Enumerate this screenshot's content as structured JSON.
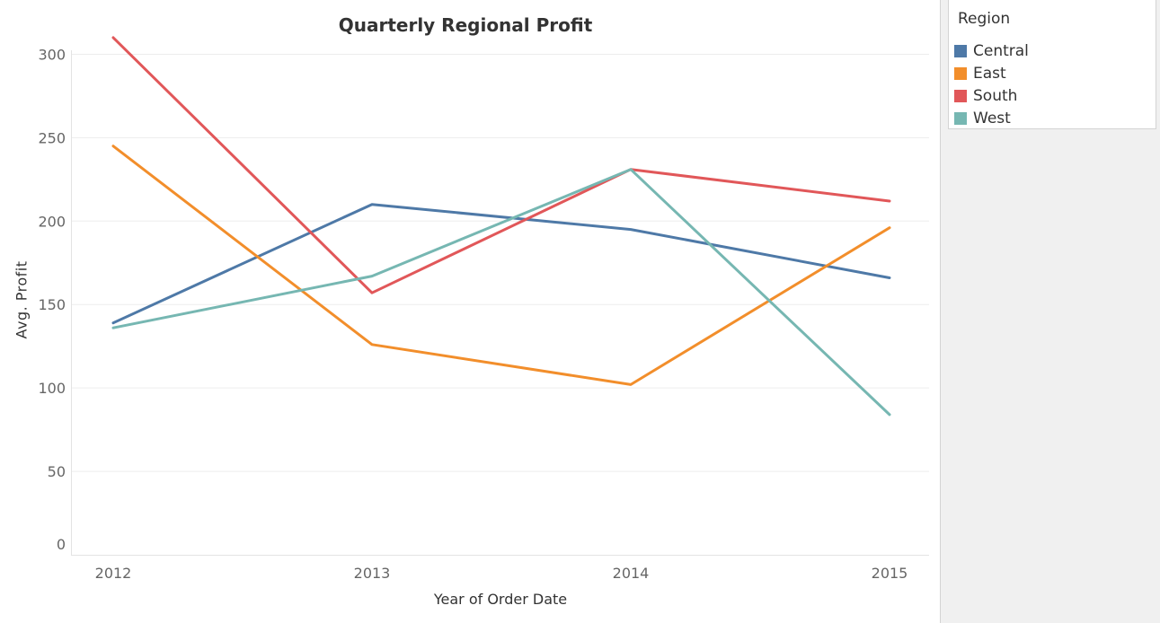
{
  "chart_data": {
    "type": "line",
    "title": "Quarterly Regional Profit",
    "xlabel": "Year of Order Date",
    "ylabel": "Avg. Profit",
    "x": [
      "2012",
      "2013",
      "2014",
      "2015"
    ],
    "ylim": [
      0,
      325
    ],
    "yticks": [
      0,
      50,
      100,
      150,
      200,
      250,
      300
    ],
    "grid": true,
    "legend_position": "right",
    "series": [
      {
        "name": "Central",
        "color": "#4e79a7",
        "values": [
          139,
          210,
          195,
          166
        ]
      },
      {
        "name": "East",
        "color": "#f28e2b",
        "values": [
          245,
          126,
          102,
          196
        ]
      },
      {
        "name": "South",
        "color": "#e15759",
        "values": [
          310,
          157,
          231,
          212
        ]
      },
      {
        "name": "West",
        "color": "#76b7b2",
        "values": [
          136,
          167,
          231,
          84
        ]
      }
    ]
  },
  "legend": {
    "title": "Region",
    "items": [
      {
        "label": "Central",
        "color": "#4e79a7"
      },
      {
        "label": "East",
        "color": "#f28e2b"
      },
      {
        "label": "South",
        "color": "#e15759"
      },
      {
        "label": "West",
        "color": "#76b7b2"
      }
    ]
  }
}
